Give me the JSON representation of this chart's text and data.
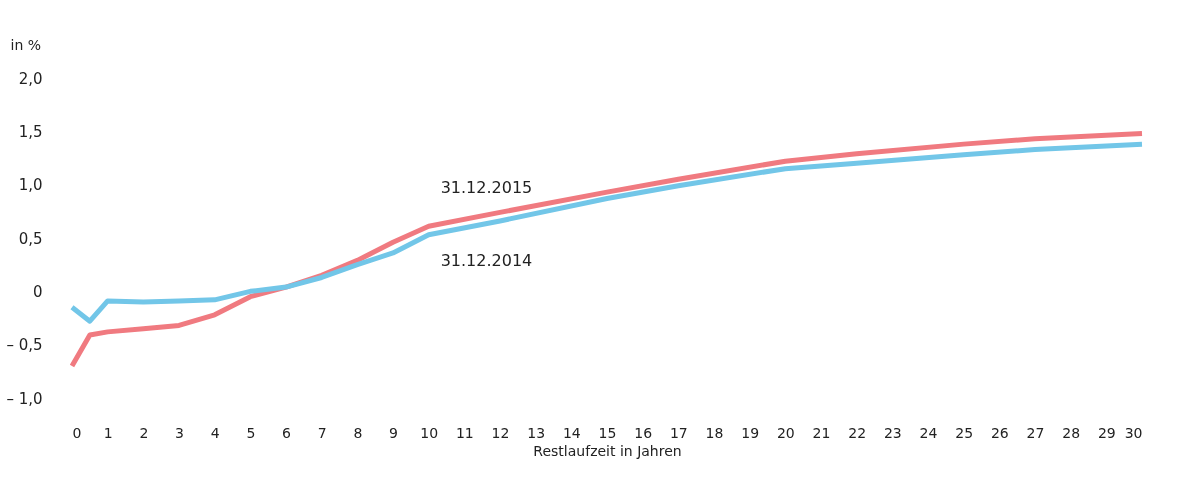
{
  "chart_data": {
    "type": "line",
    "ylabel": "in %",
    "xlabel": "Restlaufzeit in Jahren",
    "x": [
      0,
      0.5,
      1,
      2,
      3,
      4,
      5,
      6,
      7,
      8,
      9,
      10,
      12,
      15,
      17,
      20,
      22,
      25,
      27,
      30
    ],
    "series": [
      {
        "name": "31.12.2015",
        "color": "#f07a80",
        "values": [
          -0.7,
          -0.41,
          -0.38,
          -0.35,
          -0.32,
          -0.22,
          -0.05,
          0.04,
          0.15,
          0.29,
          0.46,
          0.61,
          0.74,
          0.93,
          1.05,
          1.22,
          1.29,
          1.38,
          1.43,
          1.48
        ]
      },
      {
        "name": "31.12.2014",
        "color": "#72c6e8",
        "values": [
          -0.15,
          -0.28,
          -0.09,
          -0.1,
          -0.09,
          -0.08,
          0.0,
          0.04,
          0.13,
          0.25,
          0.36,
          0.53,
          0.66,
          0.87,
          0.99,
          1.15,
          1.2,
          1.28,
          1.33,
          1.38
        ]
      }
    ],
    "xlim": [
      0,
      30
    ],
    "xticks": [
      0,
      1,
      2,
      3,
      4,
      5,
      6,
      7,
      8,
      9,
      10,
      11,
      12,
      13,
      14,
      15,
      16,
      17,
      18,
      19,
      20,
      21,
      22,
      23,
      24,
      25,
      26,
      27,
      28,
      29,
      30
    ],
    "ylim": [
      -1.0,
      2.0
    ],
    "yticks": [
      {
        "value": -1.0,
        "label": "– 1,0"
      },
      {
        "value": -0.5,
        "label": "– 0,5"
      },
      {
        "value": 0,
        "label": "0"
      },
      {
        "value": 0.5,
        "label": "0,5"
      },
      {
        "value": 1.0,
        "label": "1,0"
      },
      {
        "value": 1.5,
        "label": "1,5"
      },
      {
        "value": 2.0,
        "label": "2,0"
      }
    ],
    "grid": false,
    "legend": false,
    "marker": "none",
    "line_style": "solid"
  }
}
